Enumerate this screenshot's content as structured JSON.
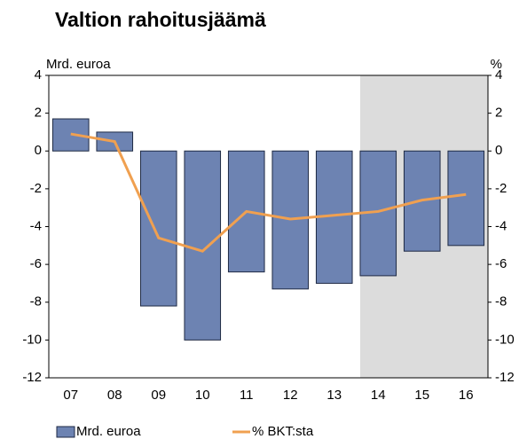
{
  "chart_data": {
    "type": "bar_line",
    "title": "Valtion rahoitusjäämä",
    "y_label": "Mrd. euroa",
    "y2_label": "%",
    "categories": [
      "07",
      "08",
      "09",
      "10",
      "11",
      "12",
      "13",
      "14",
      "15",
      "16"
    ],
    "series": [
      {
        "name": "Mrd. euroa",
        "type": "bar",
        "color": "#6d83b2",
        "values": [
          1.7,
          1.0,
          -8.2,
          -10.0,
          -6.4,
          -7.3,
          -7.0,
          -6.6,
          -5.3,
          -5.0
        ]
      },
      {
        "name": "% BKT:sta",
        "type": "line",
        "axis": "y2",
        "color": "#f0a050",
        "values": [
          0.9,
          0.5,
          -4.6,
          -5.3,
          -3.2,
          -3.6,
          -3.4,
          -3.2,
          -2.6,
          -2.3
        ]
      }
    ],
    "ylim": [
      -12,
      4
    ],
    "yticks": [
      -12,
      -10,
      -8,
      -6,
      -4,
      -2,
      0,
      2,
      4
    ],
    "y2lim": [
      -12,
      4
    ],
    "y2ticks": [
      -12,
      -10,
      -8,
      -6,
      -4,
      -2,
      0,
      2,
      4
    ],
    "legend": "bottom"
  }
}
